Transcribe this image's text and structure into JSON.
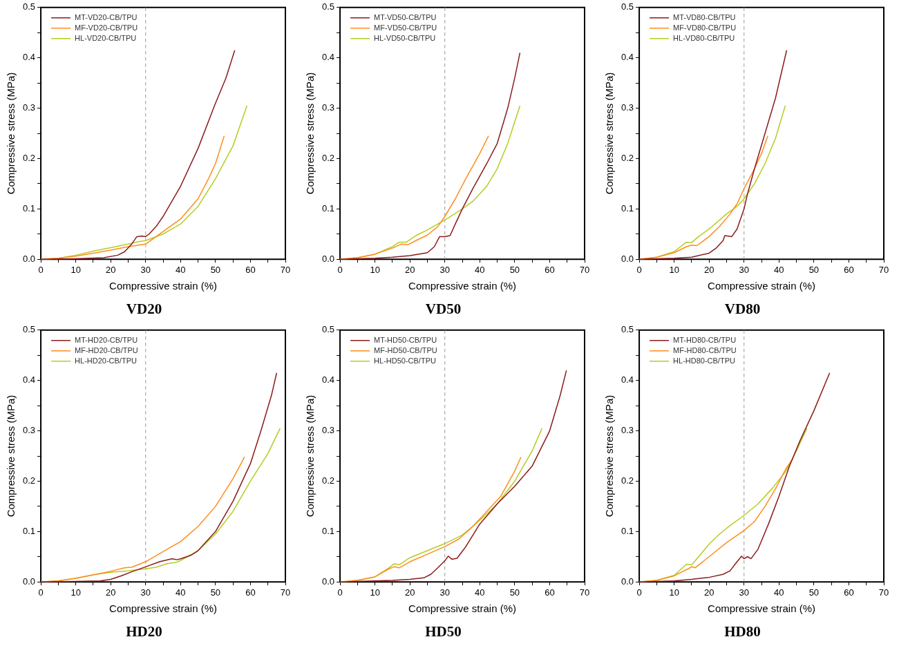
{
  "chart_data": [
    {
      "type": "line",
      "title": "VD20",
      "xlabel": "Compressive strain (%)",
      "ylabel": "Compressive stress (MPa)",
      "xlim": [
        0,
        70
      ],
      "ylim": [
        0,
        0.5
      ],
      "xticks": [
        0,
        {
          "value": 5,
          "label": null
        },
        10,
        {
          "value": 15,
          "label": null
        },
        20,
        {
          "value": 25,
          "label": null
        },
        30,
        {
          "value": 35,
          "label": null
        },
        40,
        {
          "value": 45,
          "label": null
        },
        50,
        {
          "value": 55,
          "label": null
        },
        60,
        {
          "value": 65,
          "label": null
        },
        70
      ],
      "yticks": [
        {
          "value": 0,
          "label": "0.0"
        },
        {
          "value": 0.05,
          "label": null
        },
        0.1,
        {
          "value": 0.15,
          "label": null
        },
        0.2,
        {
          "value": 0.25,
          "label": null
        },
        0.3,
        {
          "value": 0.35,
          "label": null
        },
        0.4,
        {
          "value": 0.45,
          "label": null
        },
        0.5
      ],
      "grid": false,
      "legend": "top left",
      "ref_lines": [
        {
          "axis": "x",
          "value": 30,
          "color": "#999999",
          "line_style": "dashed"
        }
      ],
      "series": [
        {
          "name": "MT-VD20-CB/TPU",
          "color": "#8b1a1a",
          "x": [
            0,
            10,
            18,
            22,
            24,
            26,
            27.5,
            29,
            30,
            31,
            33,
            35,
            40,
            45,
            50,
            53,
            55.5
          ],
          "values": [
            0,
            0.001,
            0.003,
            0.008,
            0.015,
            0.03,
            0.045,
            0.046,
            0.045,
            0.05,
            0.065,
            0.085,
            0.145,
            0.22,
            0.31,
            0.36,
            0.415
          ]
        },
        {
          "name": "MF-VD20-CB/TPU",
          "color": "#ff8c1a",
          "x": [
            0,
            5,
            10,
            15,
            20,
            25,
            28,
            30,
            32,
            35,
            40,
            45,
            48,
            50,
            52.5
          ],
          "values": [
            0,
            0.002,
            0.006,
            0.012,
            0.018,
            0.025,
            0.028,
            0.03,
            0.04,
            0.055,
            0.08,
            0.12,
            0.16,
            0.19,
            0.245
          ]
        },
        {
          "name": "HL-VD20-CB/TPU",
          "color": "#b5cc20",
          "x": [
            0,
            5,
            10,
            15,
            20,
            25,
            28,
            30,
            35,
            40,
            45,
            50,
            55,
            59
          ],
          "values": [
            0,
            0.002,
            0.008,
            0.016,
            0.023,
            0.03,
            0.035,
            0.037,
            0.05,
            0.07,
            0.105,
            0.16,
            0.225,
            0.305
          ]
        }
      ]
    },
    {
      "type": "line",
      "title": "VD50",
      "xlabel": "Compressive strain (%)",
      "ylabel": "Compressive stress (MPa)",
      "xlim": [
        0,
        70
      ],
      "ylim": [
        0,
        0.5
      ],
      "xticks": [
        0,
        {
          "value": 5,
          "label": null
        },
        10,
        {
          "value": 15,
          "label": null
        },
        20,
        {
          "value": 25,
          "label": null
        },
        30,
        {
          "value": 35,
          "label": null
        },
        40,
        {
          "value": 45,
          "label": null
        },
        50,
        {
          "value": 55,
          "label": null
        },
        60,
        {
          "value": 65,
          "label": null
        },
        70
      ],
      "yticks": [
        {
          "value": 0,
          "label": "0.0"
        },
        {
          "value": 0.05,
          "label": null
        },
        0.1,
        {
          "value": 0.15,
          "label": null
        },
        0.2,
        {
          "value": 0.25,
          "label": null
        },
        0.3,
        {
          "value": 0.35,
          "label": null
        },
        0.4,
        {
          "value": 0.45,
          "label": null
        },
        0.5
      ],
      "grid": false,
      "legend": "top left",
      "ref_lines": [
        {
          "axis": "x",
          "value": 30,
          "color": "#999999",
          "line_style": "dashed"
        }
      ],
      "series": [
        {
          "name": "MT-VD50-CB/TPU",
          "color": "#8b1a1a",
          "x": [
            0,
            10,
            15,
            20,
            25,
            27,
            28.5,
            30,
            31.5,
            33,
            35,
            38,
            42,
            45,
            48,
            50,
            51.5
          ],
          "values": [
            0,
            0.002,
            0.004,
            0.007,
            0.013,
            0.025,
            0.045,
            0.045,
            0.047,
            0.07,
            0.1,
            0.14,
            0.19,
            0.23,
            0.3,
            0.36,
            0.41
          ]
        },
        {
          "name": "MF-VD50-CB/TPU",
          "color": "#ff8c1a",
          "x": [
            0,
            5,
            10,
            15,
            17.5,
            19.5,
            22,
            25,
            28,
            30,
            33,
            36,
            40,
            42.5
          ],
          "values": [
            0,
            0.003,
            0.01,
            0.022,
            0.03,
            0.029,
            0.038,
            0.048,
            0.065,
            0.085,
            0.12,
            0.16,
            0.21,
            0.245
          ]
        },
        {
          "name": "HL-VD50-CB/TPU",
          "color": "#b5cc20",
          "x": [
            0,
            5,
            10,
            15,
            17,
            19,
            22,
            25,
            28,
            31,
            35,
            38,
            42,
            45,
            48,
            51.5
          ],
          "values": [
            0,
            0.003,
            0.01,
            0.025,
            0.034,
            0.034,
            0.048,
            0.058,
            0.07,
            0.082,
            0.1,
            0.115,
            0.145,
            0.18,
            0.23,
            0.305
          ]
        }
      ]
    },
    {
      "type": "line",
      "title": "VD80",
      "xlabel": "Compressive strain (%)",
      "ylabel": "Compressive stress (MPa)",
      "xlim": [
        0,
        70
      ],
      "ylim": [
        0,
        0.5
      ],
      "xticks": [
        0,
        {
          "value": 5,
          "label": null
        },
        10,
        {
          "value": 15,
          "label": null
        },
        20,
        {
          "value": 25,
          "label": null
        },
        30,
        {
          "value": 35,
          "label": null
        },
        40,
        {
          "value": 45,
          "label": null
        },
        50,
        {
          "value": 55,
          "label": null
        },
        60,
        {
          "value": 65,
          "label": null
        },
        70
      ],
      "yticks": [
        {
          "value": 0,
          "label": "0.0"
        },
        {
          "value": 0.05,
          "label": null
        },
        0.1,
        {
          "value": 0.15,
          "label": null
        },
        0.2,
        {
          "value": 0.25,
          "label": null
        },
        0.3,
        {
          "value": 0.35,
          "label": null
        },
        0.4,
        {
          "value": 0.45,
          "label": null
        },
        0.5
      ],
      "grid": false,
      "legend": "top left",
      "ref_lines": [
        {
          "axis": "x",
          "value": 30,
          "color": "#999999",
          "line_style": "dashed"
        }
      ],
      "series": [
        {
          "name": "MT-VD80-CB/TPU",
          "color": "#8b1a1a",
          "x": [
            0,
            10,
            15,
            20,
            22,
            24,
            24.5,
            26.5,
            28,
            30,
            31,
            33,
            36,
            39,
            42.2
          ],
          "values": [
            0,
            0.002,
            0.004,
            0.012,
            0.022,
            0.037,
            0.047,
            0.045,
            0.06,
            0.1,
            0.13,
            0.18,
            0.25,
            0.32,
            0.415
          ]
        },
        {
          "name": "MF-VD80-CB/TPU",
          "color": "#ff8c1a",
          "x": [
            0,
            5,
            10,
            13.5,
            15,
            16.5,
            20,
            23,
            26,
            28,
            30,
            33,
            35,
            36.8
          ],
          "values": [
            0,
            0.004,
            0.013,
            0.025,
            0.028,
            0.027,
            0.045,
            0.065,
            0.09,
            0.11,
            0.14,
            0.18,
            0.21,
            0.245
          ]
        },
        {
          "name": "HL-VD80-CB/TPU",
          "color": "#b5cc20",
          "x": [
            0,
            5,
            10,
            13.5,
            15,
            17,
            20,
            25,
            28,
            30,
            33,
            36,
            39,
            41.8
          ],
          "values": [
            0,
            0.004,
            0.015,
            0.034,
            0.033,
            0.045,
            0.06,
            0.09,
            0.105,
            0.12,
            0.15,
            0.19,
            0.24,
            0.305
          ]
        }
      ]
    },
    {
      "type": "line",
      "title": "HD20",
      "xlabel": "Compressive strain (%)",
      "ylabel": "Compressive stress (MPa)",
      "xlim": [
        0,
        70
      ],
      "ylim": [
        0,
        0.5
      ],
      "xticks": [
        0,
        {
          "value": 5,
          "label": null
        },
        10,
        {
          "value": 15,
          "label": null
        },
        20,
        {
          "value": 25,
          "label": null
        },
        30,
        {
          "value": 35,
          "label": null
        },
        40,
        {
          "value": 45,
          "label": null
        },
        50,
        {
          "value": 55,
          "label": null
        },
        60,
        {
          "value": 65,
          "label": null
        },
        70
      ],
      "yticks": [
        {
          "value": 0,
          "label": "0.0"
        },
        {
          "value": 0.05,
          "label": null
        },
        0.1,
        {
          "value": 0.15,
          "label": null
        },
        0.2,
        {
          "value": 0.25,
          "label": null
        },
        0.3,
        {
          "value": 0.35,
          "label": null
        },
        0.4,
        {
          "value": 0.45,
          "label": null
        },
        0.5
      ],
      "grid": false,
      "legend": "top left",
      "ref_lines": [
        {
          "axis": "x",
          "value": 30,
          "color": "#999999",
          "line_style": "dashed"
        }
      ],
      "series": [
        {
          "name": "MT-HD20-CB/TPU",
          "color": "#8b1a1a",
          "x": [
            0,
            10,
            17,
            20,
            23,
            26,
            30,
            34,
            37.5,
            39,
            40.5,
            43,
            45,
            50,
            55,
            60,
            63,
            66,
            67.5
          ],
          "values": [
            0,
            0.001,
            0.002,
            0.005,
            0.012,
            0.02,
            0.03,
            0.04,
            0.046,
            0.044,
            0.047,
            0.053,
            0.062,
            0.1,
            0.16,
            0.235,
            0.3,
            0.37,
            0.415
          ]
        },
        {
          "name": "MF-HD20-CB/TPU",
          "color": "#ff8c1a",
          "x": [
            0,
            5,
            10,
            15,
            20,
            24,
            26,
            30,
            35,
            40,
            45,
            50,
            55,
            58.3
          ],
          "values": [
            0,
            0.002,
            0.007,
            0.014,
            0.021,
            0.028,
            0.029,
            0.04,
            0.06,
            0.08,
            0.11,
            0.15,
            0.205,
            0.248
          ]
        },
        {
          "name": "HL-HD20-CB/TPU",
          "color": "#b5cc20",
          "x": [
            0,
            5,
            10,
            15,
            20,
            25,
            30,
            33,
            36,
            39,
            42,
            45,
            50,
            55,
            60,
            65,
            68.5
          ],
          "values": [
            0,
            0.002,
            0.007,
            0.014,
            0.019,
            0.022,
            0.026,
            0.029,
            0.036,
            0.039,
            0.05,
            0.062,
            0.095,
            0.14,
            0.2,
            0.255,
            0.305
          ]
        }
      ]
    },
    {
      "type": "line",
      "title": "HD50",
      "xlabel": "Compressive strain (%)",
      "ylabel": "Compressive stress (MPa)",
      "xlim": [
        0,
        70
      ],
      "ylim": [
        0,
        0.5
      ],
      "xticks": [
        0,
        {
          "value": 5,
          "label": null
        },
        10,
        {
          "value": 15,
          "label": null
        },
        20,
        {
          "value": 25,
          "label": null
        },
        30,
        {
          "value": 35,
          "label": null
        },
        40,
        {
          "value": 45,
          "label": null
        },
        50,
        {
          "value": 55,
          "label": null
        },
        60,
        {
          "value": 65,
          "label": null
        },
        70
      ],
      "yticks": [
        {
          "value": 0,
          "label": "0.0"
        },
        {
          "value": 0.05,
          "label": null
        },
        0.1,
        {
          "value": 0.15,
          "label": null
        },
        0.2,
        {
          "value": 0.25,
          "label": null
        },
        0.3,
        {
          "value": 0.35,
          "label": null
        },
        0.4,
        {
          "value": 0.45,
          "label": null
        },
        0.5
      ],
      "grid": false,
      "legend": "top left",
      "ref_lines": [
        {
          "axis": "x",
          "value": 30,
          "color": "#999999",
          "line_style": "dashed"
        }
      ],
      "series": [
        {
          "name": "MT-HD50-CB/TPU",
          "color": "#8b1a1a",
          "x": [
            0,
            10,
            15,
            20,
            24,
            26,
            28,
            30,
            31,
            32,
            33.5,
            36,
            40,
            45,
            50,
            55,
            60,
            63,
            64.8
          ],
          "values": [
            0,
            0.002,
            0.003,
            0.005,
            0.008,
            0.015,
            0.028,
            0.042,
            0.051,
            0.045,
            0.047,
            0.07,
            0.115,
            0.155,
            0.19,
            0.23,
            0.3,
            0.37,
            0.42
          ]
        },
        {
          "name": "MF-HD50-CB/TPU",
          "color": "#ff8c1a",
          "x": [
            0,
            5,
            10,
            14,
            15.5,
            17,
            20,
            25,
            30,
            34,
            38,
            42,
            46,
            50,
            51.8
          ],
          "values": [
            0,
            0.003,
            0.01,
            0.026,
            0.03,
            0.028,
            0.04,
            0.055,
            0.07,
            0.085,
            0.11,
            0.14,
            0.17,
            0.22,
            0.248
          ]
        },
        {
          "name": "HL-HD50-CB/TPU",
          "color": "#b5cc20",
          "x": [
            0,
            5,
            10,
            14,
            15.5,
            17,
            20,
            25,
            30,
            35,
            40,
            45,
            50,
            55,
            57.8
          ],
          "values": [
            0,
            0.003,
            0.01,
            0.028,
            0.036,
            0.034,
            0.048,
            0.062,
            0.076,
            0.093,
            0.122,
            0.155,
            0.2,
            0.26,
            0.305
          ]
        }
      ]
    },
    {
      "type": "line",
      "title": "HD80",
      "xlabel": "Compressive strain (%)",
      "ylabel": "Compressive stress (MPa)",
      "xlim": [
        0,
        70
      ],
      "ylim": [
        0,
        0.5
      ],
      "xticks": [
        0,
        {
          "value": 5,
          "label": null
        },
        10,
        {
          "value": 15,
          "label": null
        },
        20,
        {
          "value": 25,
          "label": null
        },
        30,
        {
          "value": 35,
          "label": null
        },
        40,
        {
          "value": 45,
          "label": null
        },
        50,
        {
          "value": 55,
          "label": null
        },
        60,
        {
          "value": 65,
          "label": null
        },
        70
      ],
      "yticks": [
        {
          "value": 0,
          "label": "0.0"
        },
        {
          "value": 0.05,
          "label": null
        },
        0.1,
        {
          "value": 0.15,
          "label": null
        },
        0.2,
        {
          "value": 0.25,
          "label": null
        },
        0.3,
        {
          "value": 0.35,
          "label": null
        },
        0.4,
        {
          "value": 0.45,
          "label": null
        },
        0.5
      ],
      "grid": false,
      "legend": "top left",
      "ref_lines": [
        {
          "axis": "x",
          "value": 30,
          "color": "#999999",
          "line_style": "dashed"
        }
      ],
      "series": [
        {
          "name": "MT-HD80-CB/TPU",
          "color": "#8b1a1a",
          "x": [
            0,
            10,
            15,
            20,
            24,
            26,
            28,
            29.3,
            30,
            31,
            32,
            34,
            37,
            40,
            43,
            46,
            50,
            54.5
          ],
          "values": [
            0,
            0.002,
            0.005,
            0.009,
            0.015,
            0.022,
            0.04,
            0.051,
            0.046,
            0.05,
            0.046,
            0.065,
            0.115,
            0.17,
            0.23,
            0.28,
            0.34,
            0.415
          ]
        },
        {
          "name": "MF-HD80-CB/TPU",
          "color": "#ff8c1a",
          "x": [
            0,
            5,
            10,
            14,
            15,
            16,
            20,
            25,
            30,
            33,
            36,
            39,
            42,
            44
          ],
          "values": [
            0,
            0.003,
            0.012,
            0.026,
            0.03,
            0.028,
            0.05,
            0.078,
            0.102,
            0.12,
            0.15,
            0.185,
            0.225,
            0.245
          ]
        },
        {
          "name": "HL-HD80-CB/TPU",
          "color": "#b5cc20",
          "x": [
            0,
            5,
            10,
            13.5,
            15,
            17,
            20,
            23,
            26,
            30,
            34,
            38,
            42,
            45,
            48
          ],
          "values": [
            0,
            0.003,
            0.013,
            0.035,
            0.034,
            0.05,
            0.075,
            0.095,
            0.112,
            0.132,
            0.155,
            0.185,
            0.22,
            0.26,
            0.305
          ]
        }
      ]
    }
  ]
}
